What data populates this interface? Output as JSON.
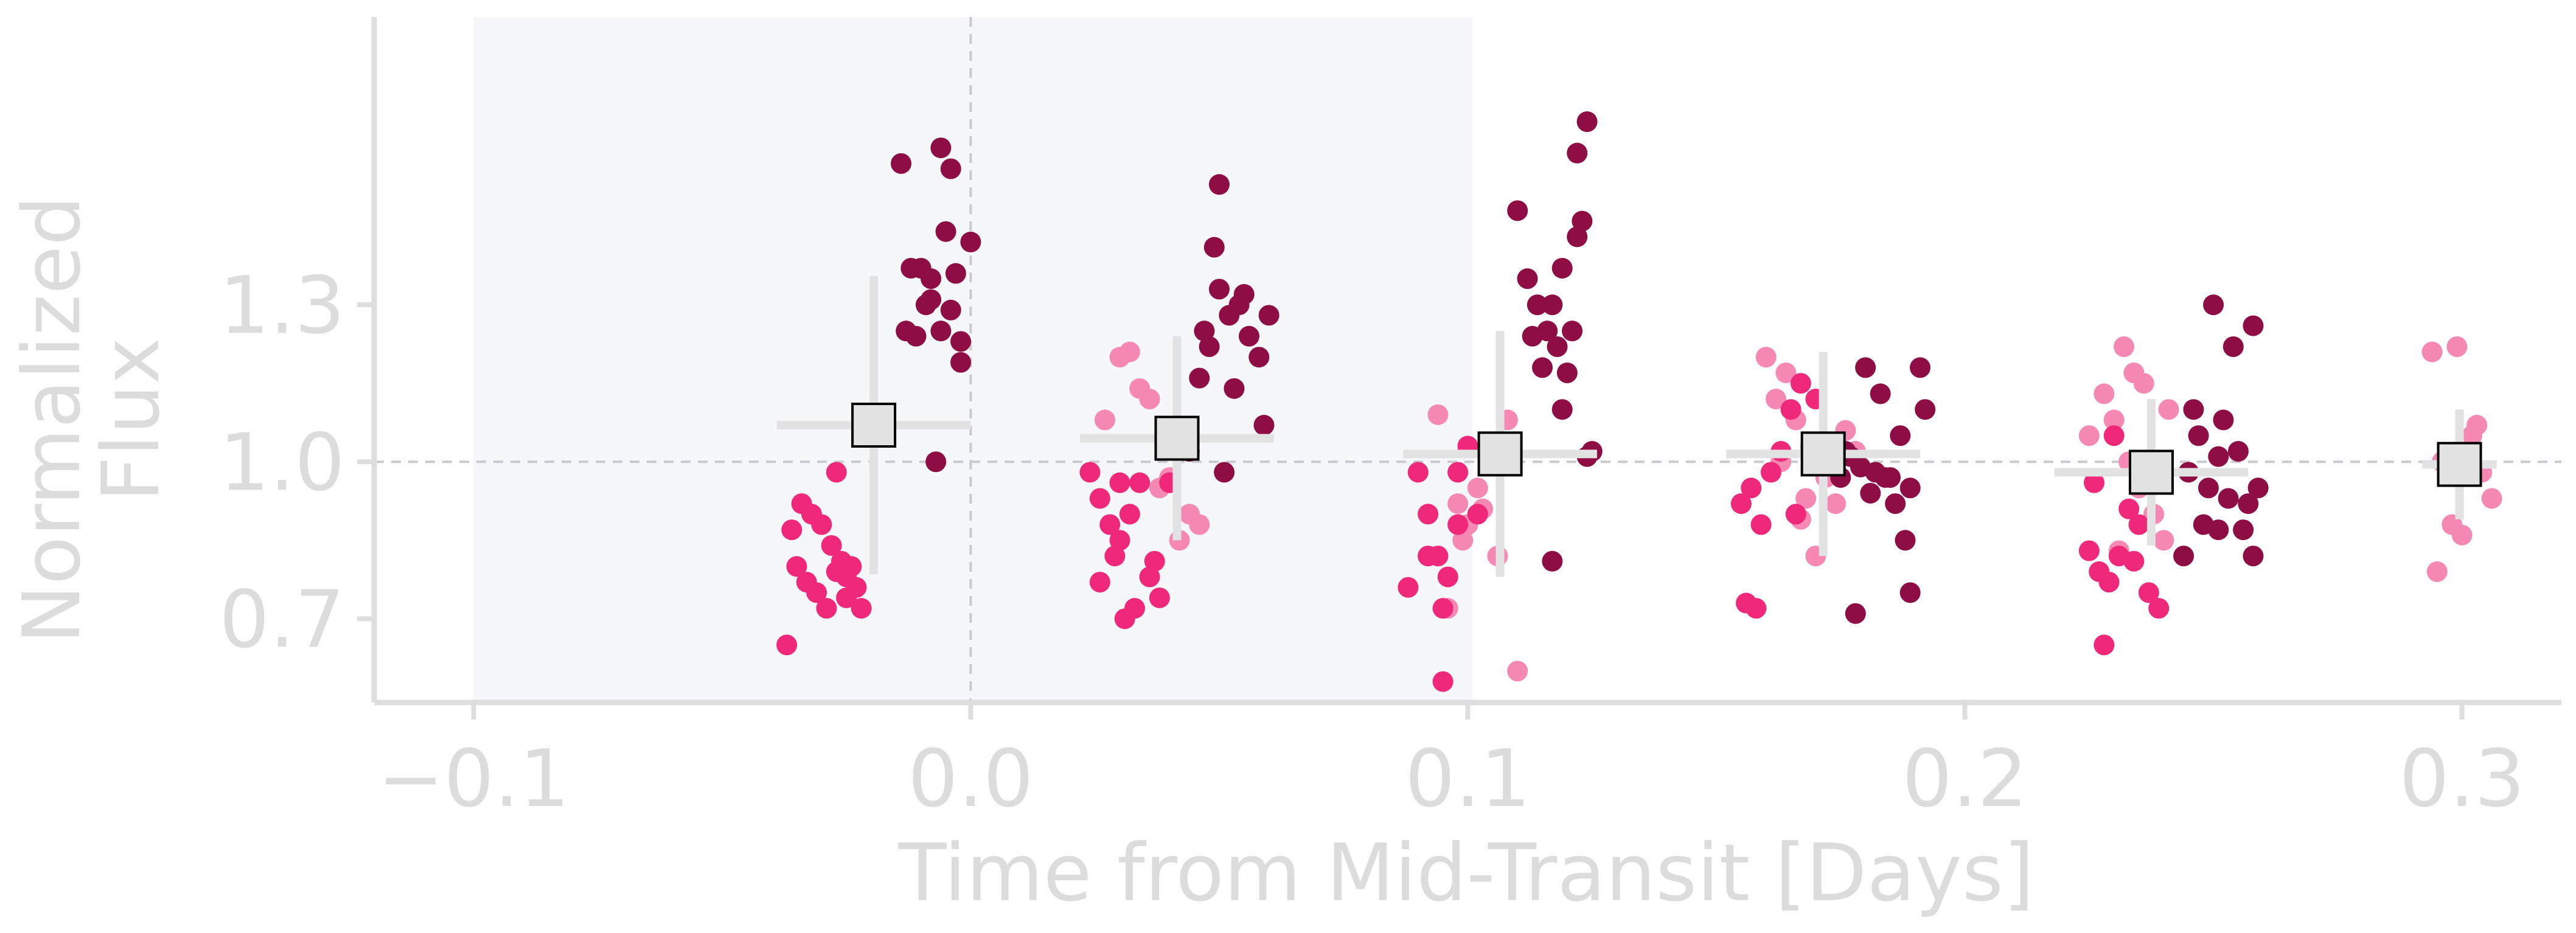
{
  "chart_data": {
    "type": "scatter",
    "xlabel": "Time from Mid-Transit [Days]",
    "ylabel_lines": [
      "Normalized",
      "Flux"
    ],
    "xlim": [
      -0.12,
      0.32
    ],
    "ylim": [
      0.54,
      1.85
    ],
    "xticks": [
      -0.1,
      0.0,
      0.1,
      0.2,
      0.3
    ],
    "xtick_labels": [
      "−0.1",
      "0.0",
      "0.1",
      "0.2",
      "0.3"
    ],
    "yticks": [
      0.7,
      1.0,
      1.3
    ],
    "ytick_labels": [
      "0.7",
      "1.0",
      "1.3"
    ],
    "shaded_region": [
      -0.1,
      0.101
    ],
    "reference_lines": {
      "x": 0.0,
      "y": 1.0
    },
    "grid": false,
    "legend": "none",
    "colors": {
      "series_light": "#f589b4",
      "series_medium": "#f0287a",
      "series_dark": "#8e0d45",
      "binned_face": "#e2e2e2",
      "errorbar": "#e2e2e2",
      "shade": "#f6f7f9",
      "axis": "#dedede",
      "refline": "#c8cad0"
    },
    "series": [
      {
        "style": "light",
        "points": [
          [
            0.027,
            1.08
          ],
          [
            0.03,
            1.2
          ],
          [
            0.032,
            1.21
          ],
          [
            0.034,
            1.14
          ],
          [
            0.036,
            1.12
          ],
          [
            0.038,
            0.95
          ],
          [
            0.04,
            0.97
          ],
          [
            0.042,
            0.85
          ],
          [
            0.044,
            0.9
          ],
          [
            0.046,
            0.88
          ],
          [
            0.094,
            1.09
          ],
          [
            0.096,
            0.72
          ],
          [
            0.098,
            0.92
          ],
          [
            0.1,
            0.88
          ],
          [
            0.102,
            0.95
          ],
          [
            0.104,
            1.02
          ],
          [
            0.106,
            0.82
          ],
          [
            0.108,
            1.08
          ],
          [
            0.11,
            0.6
          ],
          [
            0.099,
            0.85
          ],
          [
            0.103,
            0.91
          ],
          [
            0.16,
            1.2
          ],
          [
            0.162,
            1.12
          ],
          [
            0.164,
            1.17
          ],
          [
            0.166,
            1.08
          ],
          [
            0.168,
            0.93
          ],
          [
            0.17,
            0.82
          ],
          [
            0.172,
            0.97
          ],
          [
            0.174,
            0.92
          ],
          [
            0.176,
            1.06
          ],
          [
            0.167,
            0.89
          ],
          [
            0.163,
            1.0
          ],
          [
            0.178,
            1.02
          ],
          [
            0.225,
            1.05
          ],
          [
            0.228,
            1.13
          ],
          [
            0.23,
            1.08
          ],
          [
            0.232,
            1.22
          ],
          [
            0.234,
            1.17
          ],
          [
            0.236,
            1.15
          ],
          [
            0.238,
            0.9
          ],
          [
            0.24,
            0.85
          ],
          [
            0.235,
            0.95
          ],
          [
            0.233,
            1.0
          ],
          [
            0.241,
            1.1
          ],
          [
            0.231,
            0.83
          ],
          [
            0.294,
            1.21
          ],
          [
            0.296,
            1.0
          ],
          [
            0.298,
            0.88
          ],
          [
            0.3,
            0.86
          ],
          [
            0.302,
            1.05
          ],
          [
            0.304,
            0.98
          ],
          [
            0.306,
            0.93
          ],
          [
            0.295,
            0.79
          ],
          [
            0.299,
            1.22
          ],
          [
            0.303,
            1.07
          ]
        ]
      },
      {
        "style": "medium",
        "points": [
          [
            -0.036,
            0.87
          ],
          [
            -0.034,
            0.92
          ],
          [
            -0.032,
            0.9
          ],
          [
            -0.03,
            0.88
          ],
          [
            -0.035,
            0.8
          ],
          [
            -0.033,
            0.77
          ],
          [
            -0.031,
            0.75
          ],
          [
            -0.029,
            0.72
          ],
          [
            -0.027,
            0.79
          ],
          [
            -0.025,
            0.78
          ],
          [
            -0.023,
            0.76
          ],
          [
            -0.028,
            0.84
          ],
          [
            -0.026,
            0.81
          ],
          [
            -0.024,
            0.8
          ],
          [
            -0.037,
            0.65
          ],
          [
            -0.027,
            0.98
          ],
          [
            -0.022,
            0.72
          ],
          [
            -0.025,
            0.74
          ],
          [
            0.024,
            0.98
          ],
          [
            0.026,
            0.93
          ],
          [
            0.028,
            0.88
          ],
          [
            0.03,
            0.85
          ],
          [
            0.032,
            0.9
          ],
          [
            0.034,
            0.96
          ],
          [
            0.036,
            0.78
          ],
          [
            0.038,
            0.74
          ],
          [
            0.026,
            0.77
          ],
          [
            0.029,
            0.82
          ],
          [
            0.033,
            0.72
          ],
          [
            0.031,
            0.7
          ],
          [
            0.037,
            0.81
          ],
          [
            0.04,
            0.96
          ],
          [
            0.03,
            0.96
          ],
          [
            0.088,
            0.76
          ],
          [
            0.09,
            0.98
          ],
          [
            0.092,
            0.9
          ],
          [
            0.094,
            0.82
          ],
          [
            0.096,
            0.78
          ],
          [
            0.098,
            0.98
          ],
          [
            0.1,
            1.03
          ],
          [
            0.092,
            0.82
          ],
          [
            0.095,
            0.72
          ],
          [
            0.095,
            0.58
          ],
          [
            0.102,
            0.9
          ],
          [
            0.098,
            0.88
          ],
          [
            0.155,
            0.92
          ],
          [
            0.157,
            0.95
          ],
          [
            0.159,
            0.88
          ],
          [
            0.161,
            0.98
          ],
          [
            0.163,
            1.02
          ],
          [
            0.165,
            1.1
          ],
          [
            0.167,
            1.15
          ],
          [
            0.169,
            1.03
          ],
          [
            0.156,
            0.73
          ],
          [
            0.158,
            0.72
          ],
          [
            0.166,
            0.9
          ],
          [
            0.17,
            1.12
          ],
          [
            0.225,
            0.83
          ],
          [
            0.227,
            0.79
          ],
          [
            0.229,
            0.77
          ],
          [
            0.231,
            0.82
          ],
          [
            0.233,
            0.91
          ],
          [
            0.235,
            0.88
          ],
          [
            0.237,
            0.75
          ],
          [
            0.239,
            0.72
          ],
          [
            0.226,
            0.96
          ],
          [
            0.23,
            1.05
          ],
          [
            0.228,
            0.65
          ],
          [
            0.234,
            0.81
          ]
        ]
      },
      {
        "style": "dark",
        "points": [
          [
            -0.014,
            1.57
          ],
          [
            -0.012,
            1.37
          ],
          [
            -0.01,
            1.37
          ],
          [
            -0.008,
            1.31
          ],
          [
            -0.006,
            1.25
          ],
          [
            -0.004,
            1.29
          ],
          [
            -0.002,
            1.23
          ],
          [
            0.0,
            1.42
          ],
          [
            -0.013,
            1.25
          ],
          [
            -0.011,
            1.24
          ],
          [
            -0.009,
            1.3
          ],
          [
            -0.007,
            1.0
          ],
          [
            -0.006,
            1.6
          ],
          [
            -0.005,
            1.44
          ],
          [
            -0.003,
            1.36
          ],
          [
            -0.008,
            1.35
          ],
          [
            -0.004,
            1.56
          ],
          [
            -0.002,
            1.19
          ],
          [
            0.044,
            1.02
          ],
          [
            0.046,
            1.16
          ],
          [
            0.048,
            1.22
          ],
          [
            0.05,
            1.33
          ],
          [
            0.052,
            1.28
          ],
          [
            0.054,
            1.3
          ],
          [
            0.056,
            1.24
          ],
          [
            0.058,
            1.2
          ],
          [
            0.06,
            1.28
          ],
          [
            0.047,
            1.25
          ],
          [
            0.049,
            1.41
          ],
          [
            0.05,
            1.53
          ],
          [
            0.053,
            1.14
          ],
          [
            0.055,
            1.32
          ],
          [
            0.059,
            1.07
          ],
          [
            0.051,
            0.98
          ],
          [
            0.11,
            1.48
          ],
          [
            0.112,
            1.35
          ],
          [
            0.114,
            1.3
          ],
          [
            0.116,
            1.25
          ],
          [
            0.118,
            1.22
          ],
          [
            0.12,
            1.17
          ],
          [
            0.122,
            1.43
          ],
          [
            0.124,
            1.65
          ],
          [
            0.113,
            1.24
          ],
          [
            0.115,
            1.18
          ],
          [
            0.117,
            1.3
          ],
          [
            0.119,
            1.1
          ],
          [
            0.121,
            1.25
          ],
          [
            0.123,
            1.46
          ],
          [
            0.125,
            1.02
          ],
          [
            0.117,
            0.81
          ],
          [
            0.122,
            1.59
          ],
          [
            0.119,
            1.37
          ],
          [
            0.124,
            1.01
          ],
          [
            0.175,
            0.97
          ],
          [
            0.177,
            1.01
          ],
          [
            0.179,
            0.99
          ],
          [
            0.181,
            0.94
          ],
          [
            0.183,
            1.13
          ],
          [
            0.185,
            0.97
          ],
          [
            0.187,
            1.05
          ],
          [
            0.189,
            0.95
          ],
          [
            0.191,
            1.18
          ],
          [
            0.176,
            1.02
          ],
          [
            0.18,
            1.18
          ],
          [
            0.184,
            0.97
          ],
          [
            0.186,
            0.92
          ],
          [
            0.188,
            0.85
          ],
          [
            0.182,
            0.98
          ],
          [
            0.178,
            0.71
          ],
          [
            0.192,
            1.1
          ],
          [
            0.189,
            0.75
          ],
          [
            0.245,
            0.98
          ],
          [
            0.247,
            1.05
          ],
          [
            0.249,
            0.95
          ],
          [
            0.251,
            1.01
          ],
          [
            0.253,
            0.93
          ],
          [
            0.255,
            1.02
          ],
          [
            0.257,
            0.92
          ],
          [
            0.259,
            0.95
          ],
          [
            0.246,
            1.1
          ],
          [
            0.248,
            0.88
          ],
          [
            0.252,
            1.08
          ],
          [
            0.254,
            1.22
          ],
          [
            0.256,
            0.87
          ],
          [
            0.258,
            1.26
          ],
          [
            0.25,
            1.3
          ],
          [
            0.244,
            0.82
          ],
          [
            0.258,
            0.82
          ],
          [
            0.251,
            0.87
          ]
        ]
      }
    ],
    "binned": [
      {
        "x": -0.0195,
        "y": 1.07,
        "xerr": 0.0195,
        "yerr": 0.285
      },
      {
        "x": 0.0415,
        "y": 1.045,
        "xerr": 0.0195,
        "yerr": 0.195
      },
      {
        "x": 0.1065,
        "y": 1.015,
        "xerr": 0.0195,
        "yerr": 0.235
      },
      {
        "x": 0.1715,
        "y": 1.015,
        "xerr": 0.0195,
        "yerr": 0.195
      },
      {
        "x": 0.2375,
        "y": 0.98,
        "xerr": 0.0195,
        "yerr": 0.14
      },
      {
        "x": 0.2995,
        "y": 0.995,
        "xerr": 0.0075,
        "yerr": 0.105
      }
    ]
  }
}
